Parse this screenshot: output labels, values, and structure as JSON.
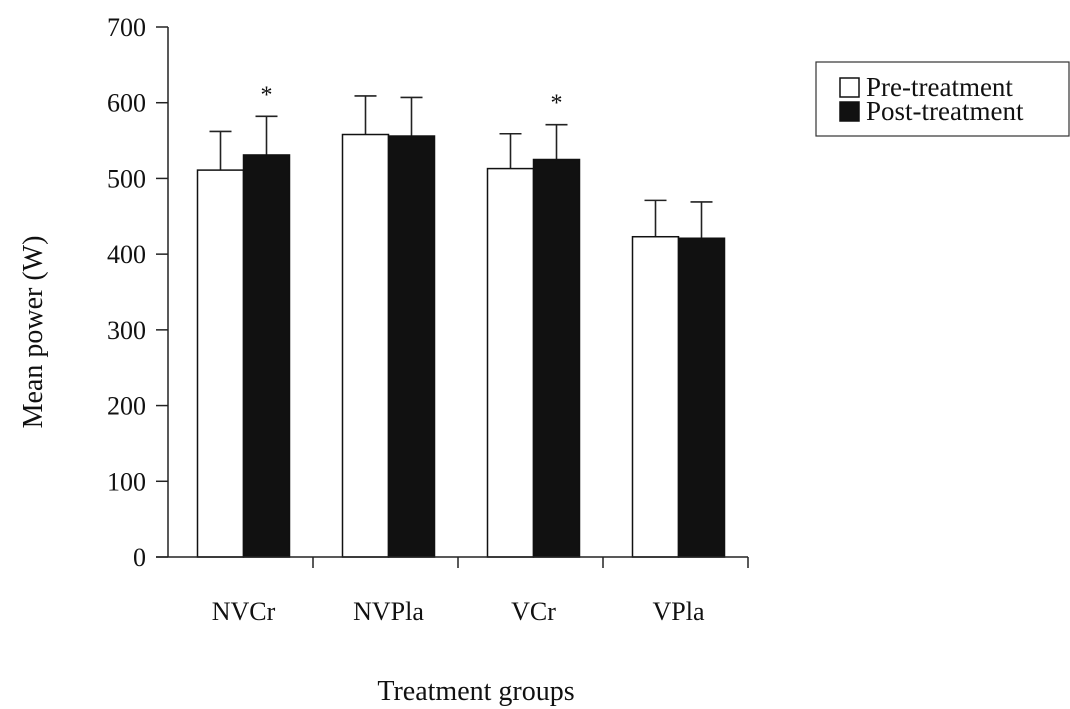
{
  "chart_data": {
    "type": "bar",
    "title": "",
    "xlabel": "Treatment groups",
    "ylabel": "Mean power (W)",
    "ylim": [
      0,
      700
    ],
    "yticks": [
      0,
      100,
      200,
      300,
      400,
      500,
      600,
      700
    ],
    "categories": [
      "NVCr",
      "NVPla",
      "VCr",
      "VPla"
    ],
    "series": [
      {
        "name": "Pre-treatment",
        "color": "#ffffff",
        "values": [
          511,
          558,
          513,
          423
        ],
        "errors": [
          51,
          51,
          46,
          48
        ]
      },
      {
        "name": "Post-treatment",
        "color": "#111111",
        "values": [
          531,
          556,
          525,
          421
        ],
        "errors": [
          51,
          51,
          46,
          48
        ]
      }
    ],
    "annotations": [
      {
        "category": "NVCr",
        "series": "Post-treatment",
        "text": "*"
      },
      {
        "category": "VCr",
        "series": "Post-treatment",
        "text": "*"
      }
    ],
    "error_bars": "upper",
    "legend_position": "top-right",
    "grid": false
  }
}
